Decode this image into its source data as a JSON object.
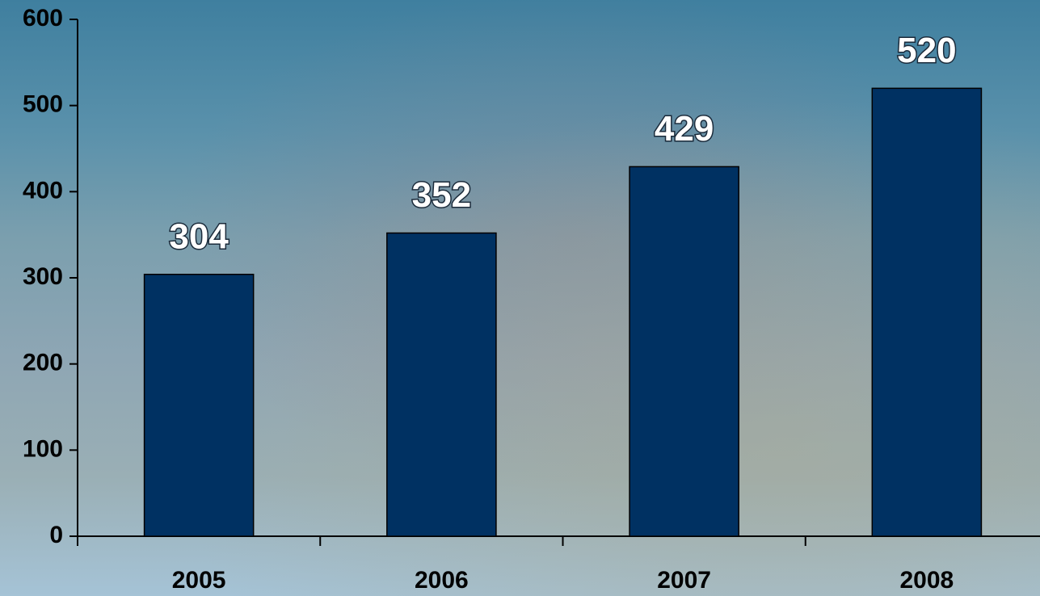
{
  "chart_data": {
    "type": "bar",
    "categories": [
      "2005",
      "2006",
      "2007",
      "2008"
    ],
    "values": [
      304,
      352,
      429,
      520
    ],
    "color": "#003162",
    "ylim": [
      0,
      600
    ],
    "yticks": [
      0,
      100,
      200,
      300,
      400,
      500,
      600
    ]
  }
}
